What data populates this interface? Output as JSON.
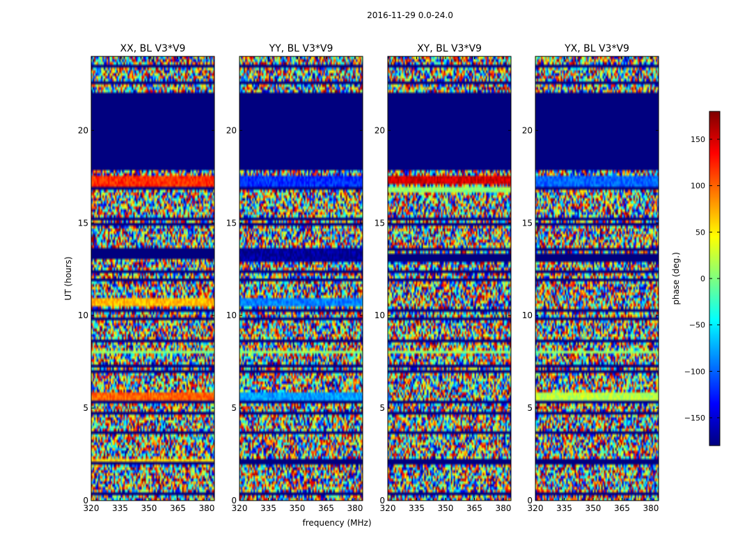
{
  "suptitle": "2016-11-29 0.0-24.0",
  "chart_data": [
    {
      "type": "heatmap",
      "title": "XX, BL V3*V9",
      "xlabel": "frequency (MHz)",
      "ylabel": "UT (hours)",
      "xlim": [
        320,
        384
      ],
      "ylim": [
        0,
        24
      ],
      "xticks": [
        320,
        335,
        350,
        365,
        380
      ],
      "yticks": [
        0,
        5,
        10,
        15,
        20
      ],
      "bands": [
        {
          "from": 17.9,
          "to": 22.0,
          "value": -180
        },
        {
          "from": 13.0,
          "to": 13.5,
          "value": -180
        },
        {
          "from": 10.5,
          "to": 10.9,
          "value": 70
        },
        {
          "from": 5.4,
          "to": 5.8,
          "value": 100
        },
        {
          "from": 17.0,
          "to": 17.5,
          "value": 120
        },
        {
          "from": 7.9,
          "to": 8.1,
          "value": 5
        },
        {
          "from": 2.1,
          "to": 2.3,
          "value": 60
        }
      ]
    },
    {
      "type": "heatmap",
      "title": "YY, BL V3*V9",
      "xlabel": "frequency (MHz)",
      "ylabel": "",
      "xlim": [
        320,
        384
      ],
      "ylim": [
        0,
        24
      ],
      "xticks": [
        320,
        335,
        350,
        365,
        380
      ],
      "yticks": [
        0,
        5,
        10,
        15,
        20
      ],
      "bands": [
        {
          "from": 17.9,
          "to": 22.0,
          "value": -180
        },
        {
          "from": 12.9,
          "to": 13.6,
          "value": -170
        },
        {
          "from": 10.5,
          "to": 10.9,
          "value": -90
        },
        {
          "from": 5.4,
          "to": 5.8,
          "value": -80
        },
        {
          "from": 17.0,
          "to": 17.5,
          "value": -120
        },
        {
          "from": 7.9,
          "to": 8.1,
          "value": 5
        }
      ]
    },
    {
      "type": "heatmap",
      "title": "XY, BL V3*V9",
      "xlabel": "",
      "ylabel": "",
      "xlim": [
        320,
        384
      ],
      "ylim": [
        0,
        24
      ],
      "xticks": [
        320,
        335,
        350,
        365,
        380
      ],
      "yticks": [
        0,
        5,
        10,
        15,
        20
      ],
      "bands": [
        {
          "from": 17.9,
          "to": 22.0,
          "value": -180
        },
        {
          "from": 12.9,
          "to": 13.3,
          "value": -180
        },
        {
          "from": 17.1,
          "to": 17.5,
          "value": 150
        },
        {
          "from": 16.6,
          "to": 16.9,
          "value": 5
        },
        {
          "from": 7.9,
          "to": 8.1,
          "value": 5
        }
      ]
    },
    {
      "type": "heatmap",
      "title": "YX, BL V3*V9",
      "xlabel": "",
      "ylabel": "",
      "xlim": [
        320,
        384
      ],
      "ylim": [
        0,
        24
      ],
      "xticks": [
        320,
        335,
        350,
        365,
        380
      ],
      "yticks": [
        0,
        5,
        10,
        15,
        20
      ],
      "bands": [
        {
          "from": 17.9,
          "to": 22.0,
          "value": -180
        },
        {
          "from": 12.9,
          "to": 13.3,
          "value": -180
        },
        {
          "from": 17.0,
          "to": 17.5,
          "value": -100
        },
        {
          "from": 5.4,
          "to": 5.8,
          "value": 20
        },
        {
          "from": 7.9,
          "to": 8.1,
          "value": 5
        }
      ]
    }
  ],
  "colorbar": {
    "label": "phase (deg.)",
    "range": [
      -180,
      180
    ],
    "ticks": [
      150,
      100,
      50,
      0,
      -50,
      -100,
      -150
    ],
    "tick_labels": [
      "150",
      "100",
      "50",
      "0",
      "−50",
      "−100",
      "−150"
    ],
    "colormap": [
      "#00007f",
      "#0000ff",
      "#007fff",
      "#00ffff",
      "#7fff7f",
      "#ffff00",
      "#ff7f00",
      "#ff0000",
      "#7f0000"
    ]
  }
}
